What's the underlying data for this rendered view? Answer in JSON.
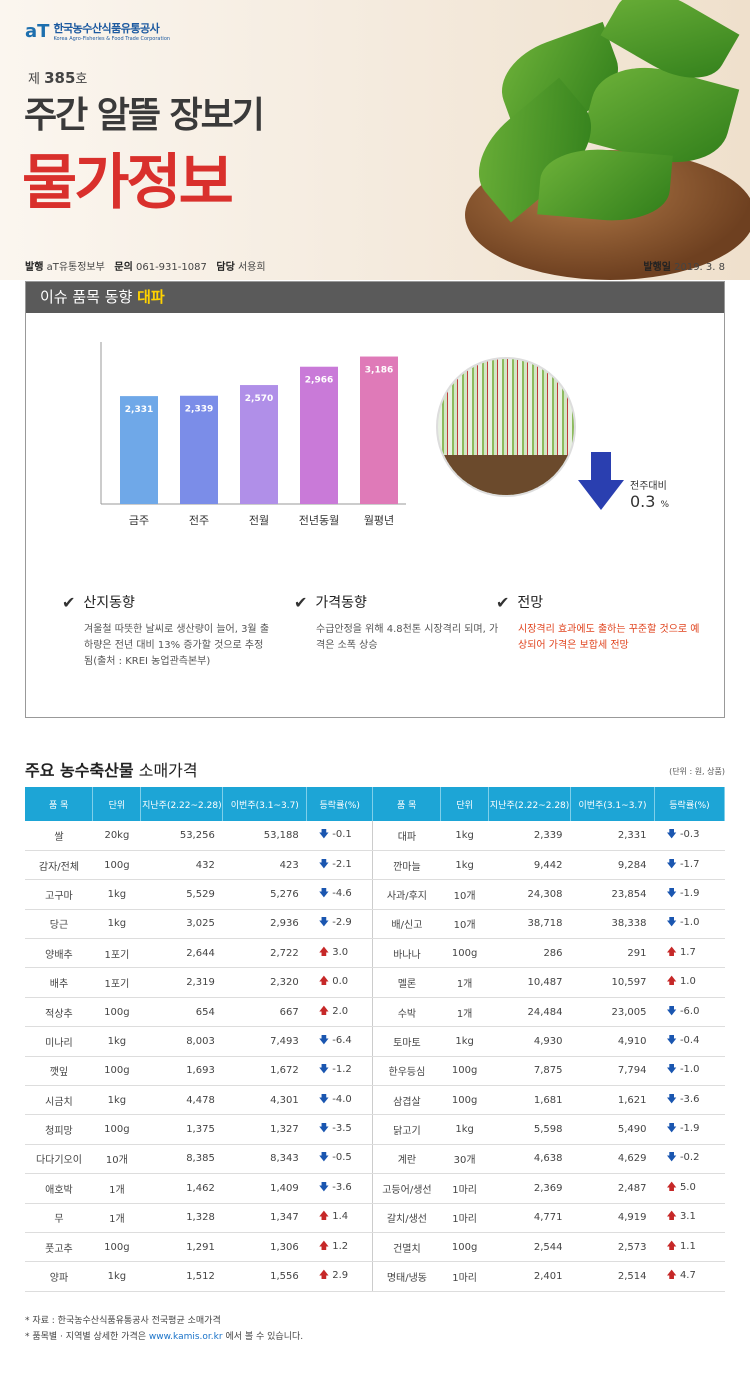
{
  "header": {
    "logo_mark": "aT",
    "logo_kr": "한국농수산식품유통공사",
    "logo_en": "Korea Agro-Fisheries & Food Trade Corporation",
    "issue_prefix": "제",
    "issue_no": "385",
    "issue_suffix": "호",
    "title_main": "주간 알뜰 장보기",
    "title_sub": "물가정보",
    "publisher_lbl": "발행",
    "publisher": "aT유통정보부",
    "contact_lbl": "문의",
    "contact": "061-931-1087",
    "manager_lbl": "담당",
    "manager": "서용희",
    "date_lbl": "발행일",
    "date": "2019. 3. 8"
  },
  "issue": {
    "head": "이슈 품목 동향",
    "item": "대파",
    "compare_label": "전주대비",
    "compare_value": "0.3",
    "compare_unit": "%",
    "sections": [
      {
        "title": "산지동향",
        "text": "겨울철 따뜻한 날씨로 생산량이 늘어, 3월 출하량은 전년 대비 13% 증가할 것으로 추정됨(출처 : KREI 농업관측본부)"
      },
      {
        "title": "가격동향",
        "text": "수급안정을 위해 4.8천톤 시장격리 되며, 가격은 소폭 상승"
      },
      {
        "title": "전망",
        "text": "시장격리 효과에도 출하는 꾸준할 것으로 예상되어 가격은 보합세 전망"
      }
    ]
  },
  "chart_data": {
    "type": "bar",
    "categories": [
      "금주",
      "전주",
      "전월",
      "전년동월",
      "월평년"
    ],
    "values": [
      2331,
      2339,
      2570,
      2966,
      3186
    ],
    "labels": [
      "2,331",
      "2,339",
      "2,570",
      "2,966",
      "3,186"
    ],
    "ylim": [
      0,
      3500
    ],
    "colors": [
      "#6fa8e8",
      "#7b8de8",
      "#b08fe8",
      "#c97ad8",
      "#df7ab8"
    ]
  },
  "table": {
    "title_bold": "주요 농수축산물",
    "title_rest": "소매가격",
    "unit": "(단위 : 원, 상품)",
    "headers": [
      "품 목",
      "단위",
      "지난주(2.22~2.28)",
      "이번주(3.1~3.7)",
      "등락률(%)",
      "품 목",
      "단위",
      "지난주(2.22~2.28)",
      "이번주(3.1~3.7)",
      "등락률(%)"
    ],
    "rows": [
      [
        "쌀",
        "20kg",
        "53,256",
        "53,188",
        "down",
        "-0.1",
        "대파",
        "1kg",
        "2,339",
        "2,331",
        "down",
        "-0.3"
      ],
      [
        "감자/전체",
        "100g",
        "432",
        "423",
        "down",
        "-2.1",
        "깐마늘",
        "1kg",
        "9,442",
        "9,284",
        "down",
        "-1.7"
      ],
      [
        "고구마",
        "1kg",
        "5,529",
        "5,276",
        "down",
        "-4.6",
        "사과/후지",
        "10개",
        "24,308",
        "23,854",
        "down",
        "-1.9"
      ],
      [
        "당근",
        "1kg",
        "3,025",
        "2,936",
        "down",
        "-2.9",
        "배/신고",
        "10개",
        "38,718",
        "38,338",
        "down",
        "-1.0"
      ],
      [
        "양배추",
        "1포기",
        "2,644",
        "2,722",
        "up",
        "3.0",
        "바나나",
        "100g",
        "286",
        "291",
        "up",
        "1.7"
      ],
      [
        "배추",
        "1포기",
        "2,319",
        "2,320",
        "up",
        "0.0",
        "멜론",
        "1개",
        "10,487",
        "10,597",
        "up",
        "1.0"
      ],
      [
        "적상추",
        "100g",
        "654",
        "667",
        "up",
        "2.0",
        "수박",
        "1개",
        "24,484",
        "23,005",
        "down",
        "-6.0"
      ],
      [
        "미나리",
        "1kg",
        "8,003",
        "7,493",
        "down",
        "-6.4",
        "토마토",
        "1kg",
        "4,930",
        "4,910",
        "down",
        "-0.4"
      ],
      [
        "깻잎",
        "100g",
        "1,693",
        "1,672",
        "down",
        "-1.2",
        "한우등심",
        "100g",
        "7,875",
        "7,794",
        "down",
        "-1.0"
      ],
      [
        "시금치",
        "1kg",
        "4,478",
        "4,301",
        "down",
        "-4.0",
        "삼겹살",
        "100g",
        "1,681",
        "1,621",
        "down",
        "-3.6"
      ],
      [
        "청피망",
        "100g",
        "1,375",
        "1,327",
        "down",
        "-3.5",
        "닭고기",
        "1kg",
        "5,598",
        "5,490",
        "down",
        "-1.9"
      ],
      [
        "다다기오이",
        "10개",
        "8,385",
        "8,343",
        "down",
        "-0.5",
        "계란",
        "30개",
        "4,638",
        "4,629",
        "down",
        "-0.2"
      ],
      [
        "애호박",
        "1개",
        "1,462",
        "1,409",
        "down",
        "-3.6",
        "고등어/생선",
        "1마리",
        "2,369",
        "2,487",
        "up",
        "5.0"
      ],
      [
        "무",
        "1개",
        "1,328",
        "1,347",
        "up",
        "1.4",
        "갈치/생선",
        "1마리",
        "4,771",
        "4,919",
        "up",
        "3.1"
      ],
      [
        "풋고추",
        "100g",
        "1,291",
        "1,306",
        "up",
        "1.2",
        "건멸치",
        "100g",
        "2,544",
        "2,573",
        "up",
        "1.1"
      ],
      [
        "양파",
        "1kg",
        "1,512",
        "1,556",
        "up",
        "2.9",
        "명태/냉동",
        "1마리",
        "2,401",
        "2,514",
        "up",
        "4.7"
      ]
    ]
  },
  "notes": {
    "n1": "* 자료 : 한국농수산식품유통공사 전국평균 소매가격",
    "n2a": "* 품목별 · 지역별 상세한 가격은",
    "n2link": "www.kamis.or.kr",
    "n2b": "에서 볼 수 있습니다."
  }
}
